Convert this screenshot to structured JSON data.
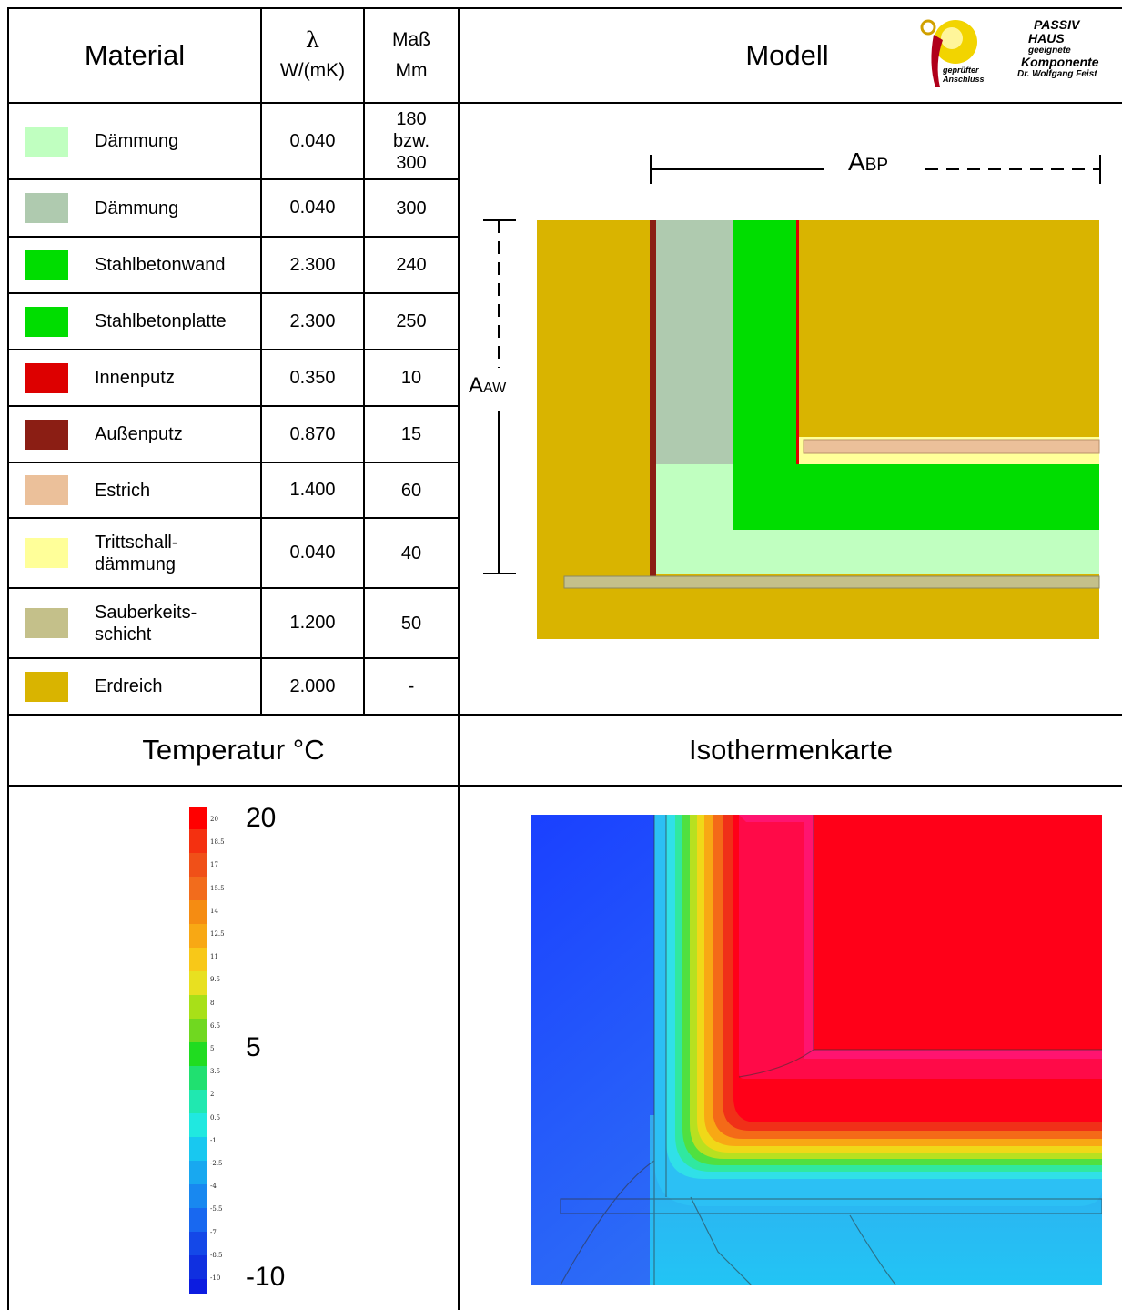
{
  "header": {
    "material": "Material",
    "lambda_symbol": "λ",
    "lambda_unit": "W/(mK)",
    "mass_line1": "Maß",
    "mass_line2": "Mm",
    "model": "Modell"
  },
  "logo": {
    "line1": "PASSIV",
    "line2": "HAUS",
    "line3": "geeignete",
    "line4": "Komponente",
    "line5": "Dr. Wolfgang Feist",
    "seal_line1": "geprüfter",
    "seal_line2": "Anschluss"
  },
  "materials": [
    {
      "name": "Dämmung",
      "lambda": "0.040",
      "mass": "180\nbzw.\n300",
      "color": "#c0ffc0"
    },
    {
      "name": "Dämmung",
      "lambda": "0.040",
      "mass": "300",
      "color": "#afcaaf"
    },
    {
      "name": "Stahlbetonwand",
      "lambda": "2.300",
      "mass": "240",
      "color": "#00dd00"
    },
    {
      "name": "Stahlbetonplatte",
      "lambda": "2.300",
      "mass": "250",
      "color": "#00dd00"
    },
    {
      "name": "Innenputz",
      "lambda": "0.350",
      "mass": "10",
      "color": "#dd0000"
    },
    {
      "name": "Außenputz",
      "lambda": "0.870",
      "mass": "15",
      "color": "#8b1e14"
    },
    {
      "name": "Estrich",
      "lambda": "1.400",
      "mass": "60",
      "color": "#ebc09a"
    },
    {
      "name": "Trittschall-\ndämmung",
      "lambda": "0.040",
      "mass": "40",
      "color": "#ffff99"
    },
    {
      "name": "Sauberkeits-\nschicht",
      "lambda": "1.200",
      "mass": "50",
      "color": "#c4c08a"
    },
    {
      "name": "Erdreich",
      "lambda": "2.000",
      "mass": "-",
      "color": "#d9b400"
    }
  ],
  "model": {
    "abp_main": "A",
    "abp_sub": "BP",
    "aaw_main": "A",
    "aaw_sub": "AW"
  },
  "section": {
    "temperature": "Temperatur °C",
    "isotherm": "Isothermenkarte"
  },
  "scale": {
    "max": "20",
    "mid": "5",
    "min": "-10",
    "ticks": [
      "20",
      "18.5",
      "17",
      "15.5",
      "14",
      "12.5",
      "11",
      "9.5",
      "8",
      "6.5",
      "5",
      "3.5",
      "2",
      "0.5",
      "-1",
      "-2.5",
      "-4",
      "-5.5",
      "-7",
      "-8.5",
      "-10"
    ]
  },
  "colors": {
    "earth": "#d9b400",
    "insulation_light": "#c0ffc0",
    "insulation_grey": "#afcaaf",
    "concrete": "#00dd00",
    "screed": "#ebc09a",
    "impact_insulation": "#ffff99",
    "blinding": "#c4c08a",
    "plaster_outer": "#8b1e14",
    "plaster_inner": "#dd0000"
  }
}
